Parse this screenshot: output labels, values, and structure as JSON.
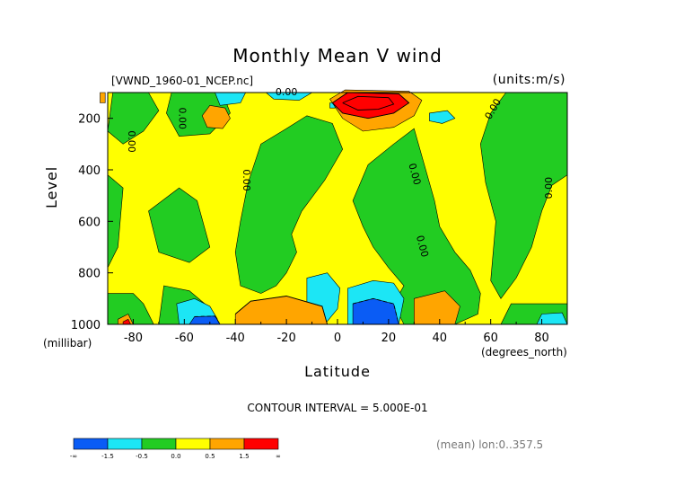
{
  "chart_data": {
    "type": "heatmap",
    "title": "Monthly Mean V wind",
    "dataset_label": "[VWND_1960-01_NCEP.nc]",
    "units_label": "(units:m/s)",
    "xlabel": "Latitude",
    "x_units_label": "(degrees_north)",
    "ylabel": "Level",
    "y_units_label": "(millibar)",
    "xlim": [
      -90,
      90
    ],
    "ylim": [
      1000,
      100
    ],
    "x_ticks": [
      "-80",
      "-60",
      "-40",
      "-20",
      "0",
      "20",
      "40",
      "60",
      "80"
    ],
    "y_ticks": [
      "200",
      "400",
      "600",
      "800",
      "1000"
    ],
    "contour_interval_label": "CONTOUR INTERVAL = 5.000E-01",
    "zero_contour_label": "0.00",
    "footer_label": "(mean) lon:0..357.5",
    "colorbar": {
      "colors": [
        "#0a5cf5",
        "#1ce6f5",
        "#22cc22",
        "#ffff00",
        "#ffa500",
        "#ff0000"
      ],
      "tick_labels": [
        "-∞",
        "-1.5",
        "-0.5",
        "0.0",
        "0.5",
        "1.5",
        "∞"
      ]
    },
    "regions": [
      {
        "level": -1,
        "points": [
          [
            -88,
            100
          ],
          [
            -74,
            100
          ],
          [
            -70,
            170
          ],
          [
            -76,
            250
          ],
          [
            -84,
            300
          ],
          [
            -90,
            250
          ]
        ]
      },
      {
        "level": -1,
        "points": [
          [
            -65,
            100
          ],
          [
            -45,
            100
          ],
          [
            -42,
            180
          ],
          [
            -50,
            260
          ],
          [
            -62,
            270
          ],
          [
            -67,
            180
          ]
        ]
      },
      {
        "level": -1,
        "points": [
          [
            -90,
            420
          ],
          [
            -84,
            470
          ],
          [
            -86,
            700
          ],
          [
            -90,
            780
          ]
        ]
      },
      {
        "level": -1,
        "points": [
          [
            -74,
            560
          ],
          [
            -62,
            470
          ],
          [
            -55,
            520
          ],
          [
            -50,
            700
          ],
          [
            -58,
            760
          ],
          [
            -70,
            720
          ]
        ]
      },
      {
        "level": -1,
        "points": [
          [
            -40,
            720
          ],
          [
            -38,
            600
          ],
          [
            -35,
            450
          ],
          [
            -30,
            300
          ],
          [
            -20,
            240
          ],
          [
            -12,
            190
          ],
          [
            -2,
            220
          ],
          [
            2,
            320
          ],
          [
            -5,
            440
          ],
          [
            -14,
            560
          ],
          [
            -18,
            650
          ],
          [
            -16,
            720
          ],
          [
            -20,
            800
          ],
          [
            -24,
            850
          ],
          [
            -30,
            880
          ],
          [
            -38,
            850
          ]
        ]
      },
      {
        "level": -1,
        "points": [
          [
            30,
            240
          ],
          [
            34,
            380
          ],
          [
            38,
            520
          ],
          [
            40,
            620
          ],
          [
            46,
            720
          ],
          [
            52,
            790
          ],
          [
            56,
            880
          ],
          [
            55,
            960
          ],
          [
            46,
            1000
          ],
          [
            26,
            1000
          ],
          [
            22,
            920
          ],
          [
            26,
            850
          ],
          [
            20,
            780
          ],
          [
            14,
            700
          ],
          [
            10,
            620
          ],
          [
            6,
            520
          ],
          [
            12,
            380
          ],
          [
            22,
            300
          ]
        ]
      },
      {
        "level": -1,
        "points": [
          [
            66,
            100
          ],
          [
            90,
            100
          ],
          [
            90,
            420
          ],
          [
            84,
            460
          ],
          [
            80,
            560
          ],
          [
            76,
            700
          ],
          [
            70,
            820
          ],
          [
            64,
            900
          ],
          [
            60,
            830
          ],
          [
            62,
            600
          ],
          [
            58,
            450
          ],
          [
            56,
            300
          ],
          [
            60,
            180
          ]
        ]
      },
      {
        "level": -1,
        "points": [
          [
            -90,
            880
          ],
          [
            -80,
            880
          ],
          [
            -76,
            920
          ],
          [
            -72,
            1000
          ],
          [
            -90,
            1000
          ]
        ]
      },
      {
        "level": -1,
        "points": [
          [
            -68,
            850
          ],
          [
            -58,
            870
          ],
          [
            -52,
            920
          ],
          [
            -48,
            1000
          ],
          [
            -70,
            1000
          ]
        ]
      },
      {
        "level": -1,
        "points": [
          [
            68,
            920
          ],
          [
            90,
            920
          ],
          [
            90,
            1000
          ],
          [
            64,
            1000
          ]
        ]
      },
      {
        "level": -2,
        "points": [
          [
            -48,
            100
          ],
          [
            -36,
            100
          ],
          [
            -38,
            140
          ],
          [
            -46,
            150
          ]
        ]
      },
      {
        "level": -2,
        "points": [
          [
            -63,
            920
          ],
          [
            -56,
            900
          ],
          [
            -50,
            930
          ],
          [
            -47,
            980
          ],
          [
            -56,
            1000
          ],
          [
            -62,
            1000
          ]
        ]
      },
      {
        "level": -2,
        "points": [
          [
            -12,
            820
          ],
          [
            -4,
            800
          ],
          [
            1,
            860
          ],
          [
            0,
            940
          ],
          [
            -5,
            1000
          ],
          [
            -12,
            1000
          ]
        ]
      },
      {
        "level": -2,
        "points": [
          [
            4,
            860
          ],
          [
            14,
            830
          ],
          [
            22,
            840
          ],
          [
            26,
            900
          ],
          [
            24,
            1000
          ],
          [
            4,
            1000
          ]
        ]
      },
      {
        "level": -2,
        "points": [
          [
            36,
            180
          ],
          [
            43,
            170
          ],
          [
            46,
            200
          ],
          [
            41,
            220
          ],
          [
            36,
            210
          ]
        ]
      },
      {
        "level": -2,
        "points": [
          [
            -28,
            100
          ],
          [
            -10,
            100
          ],
          [
            -15,
            130
          ],
          [
            -25,
            125
          ]
        ]
      },
      {
        "level": -2,
        "points": [
          [
            -3,
            140
          ],
          [
            -1,
            140
          ],
          [
            -1,
            160
          ],
          [
            -3,
            160
          ]
        ]
      },
      {
        "level": -2,
        "points": [
          [
            80,
            960
          ],
          [
            88,
            955
          ],
          [
            90,
            1000
          ],
          [
            78,
            1000
          ]
        ]
      },
      {
        "level": -3,
        "points": [
          [
            -56,
            970
          ],
          [
            -48,
            968
          ],
          [
            -46,
            1000
          ],
          [
            -58,
            1000
          ]
        ]
      },
      {
        "level": -3,
        "points": [
          [
            6,
            920
          ],
          [
            14,
            900
          ],
          [
            22,
            920
          ],
          [
            24,
            1000
          ],
          [
            6,
            1000
          ]
        ]
      },
      {
        "level": 1,
        "points": [
          [
            -93,
            100
          ],
          [
            -91,
            100
          ],
          [
            -91,
            140
          ],
          [
            -93,
            140
          ]
        ]
      },
      {
        "level": 1,
        "points": [
          [
            -50,
            150
          ],
          [
            -44,
            160
          ],
          [
            -42,
            200
          ],
          [
            -45,
            240
          ],
          [
            -51,
            235
          ],
          [
            -53,
            190
          ]
        ]
      },
      {
        "level": 1,
        "points": [
          [
            -3,
            125
          ],
          [
            3,
            90
          ],
          [
            28,
            95
          ],
          [
            33,
            130
          ],
          [
            30,
            190
          ],
          [
            22,
            235
          ],
          [
            10,
            250
          ],
          [
            2,
            200
          ]
        ]
      },
      {
        "level": 1,
        "points": [
          [
            -40,
            960
          ],
          [
            -34,
            910
          ],
          [
            -20,
            890
          ],
          [
            -6,
            930
          ],
          [
            -4,
            1000
          ],
          [
            -40,
            1000
          ]
        ]
      },
      {
        "level": 1,
        "points": [
          [
            30,
            900
          ],
          [
            42,
            870
          ],
          [
            48,
            930
          ],
          [
            46,
            1000
          ],
          [
            30,
            1000
          ]
        ]
      },
      {
        "level": 1,
        "points": [
          [
            -86,
            980
          ],
          [
            -82,
            960
          ],
          [
            -80,
            1000
          ],
          [
            -86,
            1000
          ]
        ]
      },
      {
        "level": 2,
        "points": [
          [
            -2,
            140
          ],
          [
            4,
            100
          ],
          [
            24,
            105
          ],
          [
            28,
            140
          ],
          [
            22,
            180
          ],
          [
            12,
            200
          ],
          [
            2,
            180
          ]
        ]
      },
      {
        "level": 2,
        "points": [
          [
            -84,
            990
          ],
          [
            -82,
            980
          ],
          [
            -81,
            1000
          ],
          [
            -84,
            1000
          ]
        ]
      }
    ],
    "contours": [
      {
        "dashed": false,
        "points": [
          [
            -2,
            140
          ],
          [
            4,
            100
          ],
          [
            24,
            105
          ],
          [
            28,
            140
          ],
          [
            22,
            180
          ],
          [
            12,
            200
          ],
          [
            2,
            180
          ],
          [
            -2,
            140
          ]
        ]
      },
      {
        "dashed": false,
        "points": [
          [
            2,
            140
          ],
          [
            8,
            115
          ],
          [
            20,
            120
          ],
          [
            22,
            145
          ],
          [
            16,
            165
          ],
          [
            8,
            168
          ],
          [
            2,
            140
          ]
        ]
      },
      {
        "dashed": false,
        "points": [
          [
            -40,
            960
          ],
          [
            -34,
            910
          ],
          [
            -20,
            890
          ],
          [
            -6,
            930
          ],
          [
            -4,
            1000
          ]
        ]
      },
      {
        "dashed": true,
        "points": [
          [
            6,
            920
          ],
          [
            14,
            900
          ],
          [
            22,
            920
          ],
          [
            24,
            1000
          ]
        ]
      },
      {
        "dashed": true,
        "points": [
          [
            -56,
            970
          ],
          [
            -48,
            968
          ],
          [
            -46,
            1000
          ]
        ]
      }
    ]
  }
}
